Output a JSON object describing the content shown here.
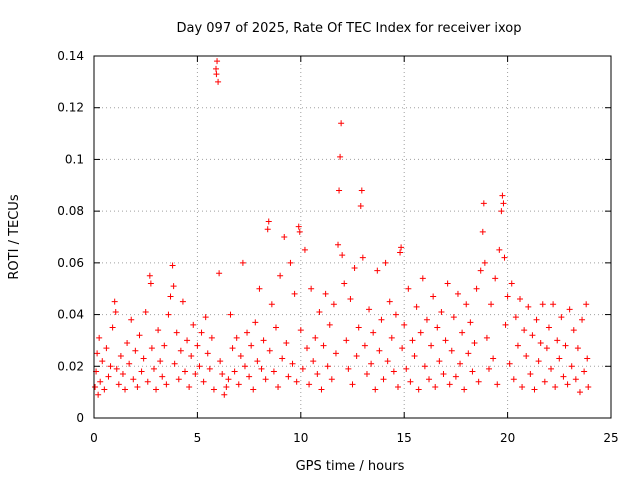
{
  "chart_data": {
    "type": "scatter",
    "title": "Day 097 of 2025, Rate Of TEC Index for receiver ixop",
    "xlabel": "GPS time / hours",
    "ylabel": "ROTI / TECUs",
    "xlim": [
      0,
      25
    ],
    "ylim": [
      0,
      0.14
    ],
    "xticks": [
      0,
      5,
      10,
      15,
      20,
      25
    ],
    "xtick_labels": [
      "0",
      "5",
      "10",
      "15",
      "20",
      "25"
    ],
    "yticks": [
      0,
      0.02,
      0.04,
      0.06,
      0.08,
      0.1,
      0.12,
      0.14
    ],
    "ytick_labels": [
      "0",
      "0.02",
      "0.04",
      "0.06",
      "0.08",
      "0.1",
      "0.12",
      "0.14"
    ],
    "grid": true,
    "marker": "+",
    "color": "#ff0000",
    "series": [
      {
        "name": "ROTI",
        "points": [
          [
            0.05,
            0.012
          ],
          [
            0.1,
            0.018
          ],
          [
            0.15,
            0.025
          ],
          [
            0.2,
            0.009
          ],
          [
            0.25,
            0.031
          ],
          [
            0.3,
            0.014
          ],
          [
            0.4,
            0.022
          ],
          [
            0.5,
            0.011
          ],
          [
            0.6,
            0.027
          ],
          [
            0.7,
            0.016
          ],
          [
            0.8,
            0.02
          ],
          [
            0.9,
            0.035
          ],
          [
            1.0,
            0.045
          ],
          [
            1.05,
            0.041
          ],
          [
            1.1,
            0.019
          ],
          [
            1.2,
            0.013
          ],
          [
            1.3,
            0.024
          ],
          [
            1.4,
            0.017
          ],
          [
            1.5,
            0.011
          ],
          [
            1.6,
            0.029
          ],
          [
            1.7,
            0.021
          ],
          [
            1.8,
            0.038
          ],
          [
            1.9,
            0.015
          ],
          [
            2.0,
            0.026
          ],
          [
            2.1,
            0.012
          ],
          [
            2.2,
            0.032
          ],
          [
            2.3,
            0.018
          ],
          [
            2.4,
            0.023
          ],
          [
            2.5,
            0.041
          ],
          [
            2.6,
            0.014
          ],
          [
            2.7,
            0.055
          ],
          [
            2.75,
            0.052
          ],
          [
            2.8,
            0.027
          ],
          [
            2.9,
            0.019
          ],
          [
            3.0,
            0.011
          ],
          [
            3.1,
            0.034
          ],
          [
            3.2,
            0.022
          ],
          [
            3.3,
            0.016
          ],
          [
            3.4,
            0.028
          ],
          [
            3.5,
            0.013
          ],
          [
            3.6,
            0.04
          ],
          [
            3.7,
            0.047
          ],
          [
            3.8,
            0.059
          ],
          [
            3.85,
            0.051
          ],
          [
            3.9,
            0.021
          ],
          [
            4.0,
            0.033
          ],
          [
            4.1,
            0.015
          ],
          [
            4.2,
            0.026
          ],
          [
            4.3,
            0.045
          ],
          [
            4.4,
            0.018
          ],
          [
            4.5,
            0.03
          ],
          [
            4.6,
            0.012
          ],
          [
            4.7,
            0.024
          ],
          [
            4.8,
            0.036
          ],
          [
            4.9,
            0.017
          ],
          [
            5.0,
            0.028
          ],
          [
            5.1,
            0.02
          ],
          [
            5.2,
            0.033
          ],
          [
            5.3,
            0.014
          ],
          [
            5.4,
            0.039
          ],
          [
            5.5,
            0.025
          ],
          [
            5.6,
            0.019
          ],
          [
            5.7,
            0.031
          ],
          [
            5.8,
            0.011
          ],
          [
            5.9,
            0.135
          ],
          [
            5.95,
            0.138
          ],
          [
            6.0,
            0.13
          ],
          [
            5.92,
            0.133
          ],
          [
            6.05,
            0.056
          ],
          [
            6.1,
            0.022
          ],
          [
            6.2,
            0.017
          ],
          [
            6.3,
            0.009
          ],
          [
            6.4,
            0.012
          ],
          [
            6.5,
            0.015
          ],
          [
            6.6,
            0.04
          ],
          [
            6.7,
            0.027
          ],
          [
            6.8,
            0.018
          ],
          [
            6.9,
            0.031
          ],
          [
            7.0,
            0.013
          ],
          [
            7.1,
            0.024
          ],
          [
            7.2,
            0.06
          ],
          [
            7.3,
            0.02
          ],
          [
            7.4,
            0.033
          ],
          [
            7.5,
            0.016
          ],
          [
            7.6,
            0.028
          ],
          [
            7.7,
            0.011
          ],
          [
            7.8,
            0.037
          ],
          [
            7.9,
            0.022
          ],
          [
            8.0,
            0.05
          ],
          [
            8.1,
            0.019
          ],
          [
            8.2,
            0.03
          ],
          [
            8.3,
            0.015
          ],
          [
            8.4,
            0.073
          ],
          [
            8.45,
            0.076
          ],
          [
            8.5,
            0.026
          ],
          [
            8.6,
            0.044
          ],
          [
            8.7,
            0.018
          ],
          [
            8.8,
            0.035
          ],
          [
            8.9,
            0.012
          ],
          [
            9.0,
            0.055
          ],
          [
            9.1,
            0.023
          ],
          [
            9.2,
            0.07
          ],
          [
            9.3,
            0.029
          ],
          [
            9.4,
            0.016
          ],
          [
            9.5,
            0.06
          ],
          [
            9.6,
            0.021
          ],
          [
            9.7,
            0.048
          ],
          [
            9.8,
            0.014
          ],
          [
            9.9,
            0.074
          ],
          [
            9.95,
            0.072
          ],
          [
            10.0,
            0.034
          ],
          [
            10.1,
            0.019
          ],
          [
            10.2,
            0.065
          ],
          [
            10.3,
            0.027
          ],
          [
            10.4,
            0.013
          ],
          [
            10.5,
            0.05
          ],
          [
            10.6,
            0.022
          ],
          [
            10.7,
            0.031
          ],
          [
            10.8,
            0.017
          ],
          [
            10.9,
            0.041
          ],
          [
            11.0,
            0.011
          ],
          [
            11.1,
            0.028
          ],
          [
            11.2,
            0.048
          ],
          [
            11.3,
            0.02
          ],
          [
            11.4,
            0.036
          ],
          [
            11.5,
            0.015
          ],
          [
            11.6,
            0.044
          ],
          [
            11.7,
            0.025
          ],
          [
            11.8,
            0.067
          ],
          [
            11.85,
            0.088
          ],
          [
            11.9,
            0.101
          ],
          [
            11.95,
            0.114
          ],
          [
            12.0,
            0.063
          ],
          [
            12.1,
            0.052
          ],
          [
            12.2,
            0.03
          ],
          [
            12.3,
            0.019
          ],
          [
            12.4,
            0.046
          ],
          [
            12.5,
            0.013
          ],
          [
            12.6,
            0.058
          ],
          [
            12.7,
            0.024
          ],
          [
            12.8,
            0.035
          ],
          [
            12.9,
            0.082
          ],
          [
            12.95,
            0.088
          ],
          [
            13.0,
            0.062
          ],
          [
            13.1,
            0.028
          ],
          [
            13.2,
            0.017
          ],
          [
            13.3,
            0.042
          ],
          [
            13.4,
            0.021
          ],
          [
            13.5,
            0.033
          ],
          [
            13.6,
            0.011
          ],
          [
            13.7,
            0.057
          ],
          [
            13.8,
            0.026
          ],
          [
            13.9,
            0.038
          ],
          [
            14.0,
            0.015
          ],
          [
            14.1,
            0.06
          ],
          [
            14.2,
            0.022
          ],
          [
            14.3,
            0.045
          ],
          [
            14.4,
            0.031
          ],
          [
            14.5,
            0.018
          ],
          [
            14.6,
            0.04
          ],
          [
            14.7,
            0.012
          ],
          [
            14.8,
            0.064
          ],
          [
            14.85,
            0.066
          ],
          [
            14.9,
            0.027
          ],
          [
            15.0,
            0.036
          ],
          [
            15.1,
            0.019
          ],
          [
            15.2,
            0.05
          ],
          [
            15.3,
            0.014
          ],
          [
            15.4,
            0.03
          ],
          [
            15.5,
            0.024
          ],
          [
            15.6,
            0.043
          ],
          [
            15.7,
            0.011
          ],
          [
            15.8,
            0.033
          ],
          [
            15.9,
            0.054
          ],
          [
            16.0,
            0.02
          ],
          [
            16.1,
            0.038
          ],
          [
            16.2,
            0.015
          ],
          [
            16.3,
            0.028
          ],
          [
            16.4,
            0.047
          ],
          [
            16.5,
            0.012
          ],
          [
            16.6,
            0.035
          ],
          [
            16.7,
            0.022
          ],
          [
            16.8,
            0.041
          ],
          [
            16.9,
            0.017
          ],
          [
            17.0,
            0.03
          ],
          [
            17.1,
            0.052
          ],
          [
            17.2,
            0.013
          ],
          [
            17.3,
            0.026
          ],
          [
            17.4,
            0.039
          ],
          [
            17.5,
            0.016
          ],
          [
            17.6,
            0.048
          ],
          [
            17.7,
            0.021
          ],
          [
            17.8,
            0.033
          ],
          [
            17.9,
            0.011
          ],
          [
            18.0,
            0.044
          ],
          [
            18.1,
            0.025
          ],
          [
            18.2,
            0.037
          ],
          [
            18.3,
            0.018
          ],
          [
            18.4,
            0.029
          ],
          [
            18.5,
            0.05
          ],
          [
            18.6,
            0.014
          ],
          [
            18.7,
            0.057
          ],
          [
            18.8,
            0.072
          ],
          [
            18.85,
            0.083
          ],
          [
            18.9,
            0.06
          ],
          [
            19.0,
            0.031
          ],
          [
            19.1,
            0.019
          ],
          [
            19.2,
            0.044
          ],
          [
            19.3,
            0.023
          ],
          [
            19.4,
            0.054
          ],
          [
            19.5,
            0.013
          ],
          [
            19.6,
            0.065
          ],
          [
            19.7,
            0.08
          ],
          [
            19.75,
            0.086
          ],
          [
            19.8,
            0.083
          ],
          [
            19.85,
            0.062
          ],
          [
            19.9,
            0.036
          ],
          [
            20.0,
            0.047
          ],
          [
            20.1,
            0.021
          ],
          [
            20.2,
            0.052
          ],
          [
            20.3,
            0.015
          ],
          [
            20.4,
            0.039
          ],
          [
            20.5,
            0.028
          ],
          [
            20.6,
            0.046
          ],
          [
            20.7,
            0.012
          ],
          [
            20.8,
            0.034
          ],
          [
            20.9,
            0.024
          ],
          [
            21.0,
            0.043
          ],
          [
            21.1,
            0.017
          ],
          [
            21.2,
            0.032
          ],
          [
            21.3,
            0.011
          ],
          [
            21.4,
            0.038
          ],
          [
            21.5,
            0.022
          ],
          [
            21.6,
            0.029
          ],
          [
            21.7,
            0.044
          ],
          [
            21.8,
            0.014
          ],
          [
            21.9,
            0.027
          ],
          [
            22.0,
            0.035
          ],
          [
            22.1,
            0.019
          ],
          [
            22.2,
            0.044
          ],
          [
            22.3,
            0.012
          ],
          [
            22.4,
            0.03
          ],
          [
            22.5,
            0.023
          ],
          [
            22.6,
            0.039
          ],
          [
            22.7,
            0.016
          ],
          [
            22.8,
            0.028
          ],
          [
            22.9,
            0.013
          ],
          [
            23.0,
            0.042
          ],
          [
            23.1,
            0.02
          ],
          [
            23.2,
            0.034
          ],
          [
            23.3,
            0.015
          ],
          [
            23.4,
            0.027
          ],
          [
            23.5,
            0.01
          ],
          [
            23.6,
            0.038
          ],
          [
            23.7,
            0.018
          ],
          [
            23.8,
            0.044
          ],
          [
            23.85,
            0.023
          ],
          [
            23.9,
            0.012
          ]
        ]
      }
    ]
  }
}
